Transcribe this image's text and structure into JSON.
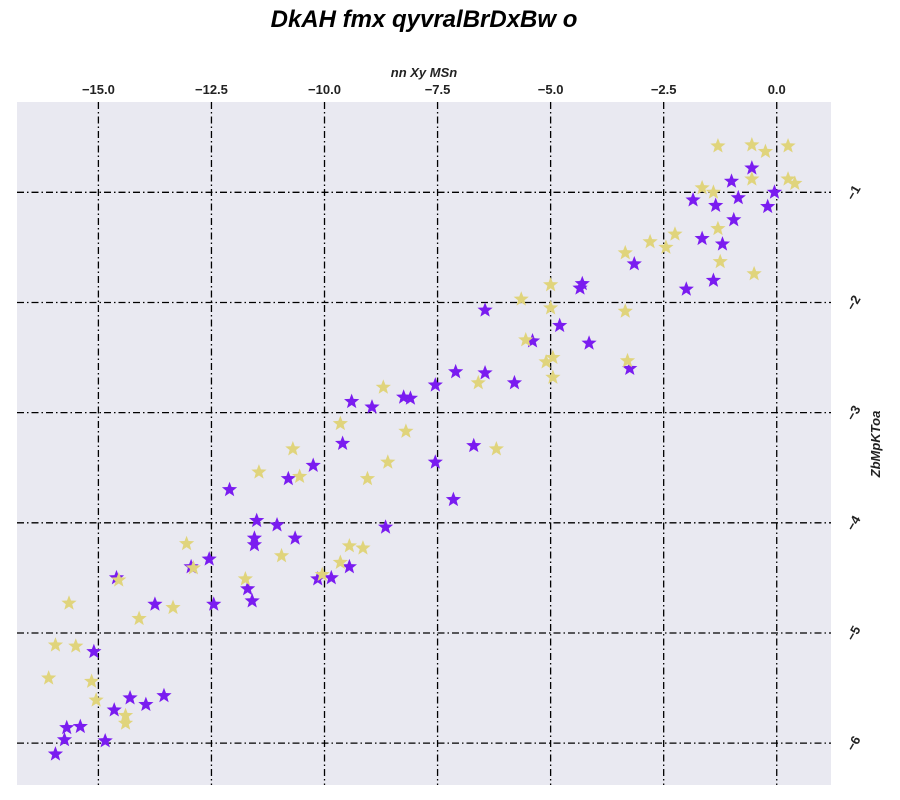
{
  "chart_data": {
    "type": "scatter",
    "title": "DkAH fmx qyvralBrDxBw o",
    "xlabel": "nn Xy MSn",
    "ylabel": "ZbMpKToa",
    "x_axis_position": "top",
    "y_axis_position": "right",
    "xlim": [
      -16.8,
      1.2
    ],
    "ylim": [
      -6.38,
      -0.18
    ],
    "x_ticks": [
      -15.0,
      -12.5,
      -10.0,
      -7.5,
      -5.0,
      -2.5,
      0.0
    ],
    "x_tick_labels": [
      "−15.0",
      "−12.5",
      "−10.0",
      "−7.5",
      "−5.0",
      "−2.5",
      "0.0"
    ],
    "y_ticks": [
      -1,
      -2,
      -3,
      -4,
      -5,
      -6
    ],
    "y_tick_labels": [
      "−1",
      "−2",
      "−3",
      "−4",
      "−5",
      "−6"
    ],
    "grid": true,
    "marker": "star",
    "colors": {
      "plot_background": "#e9e9f1"
    },
    "series": [
      {
        "color": "#7a1cf0",
        "points": [
          [
            -0.55,
            -0.78
          ],
          [
            -1.0,
            -0.9
          ],
          [
            -0.05,
            -1.0
          ],
          [
            -0.85,
            -1.05
          ],
          [
            -1.85,
            -1.07
          ],
          [
            -1.35,
            -1.12
          ],
          [
            -0.2,
            -1.13
          ],
          [
            -0.95,
            -1.25
          ],
          [
            -1.65,
            -1.42
          ],
          [
            -1.2,
            -1.47
          ],
          [
            -3.15,
            -1.65
          ],
          [
            -1.4,
            -1.8
          ],
          [
            -2.0,
            -1.88
          ],
          [
            -4.3,
            -1.83
          ],
          [
            -4.35,
            -1.87
          ],
          [
            -6.45,
            -2.07
          ],
          [
            -4.8,
            -2.21
          ],
          [
            -5.4,
            -2.35
          ],
          [
            -4.15,
            -2.37
          ],
          [
            -3.25,
            -2.6
          ],
          [
            -7.1,
            -2.63
          ],
          [
            -6.45,
            -2.64
          ],
          [
            -7.55,
            -2.75
          ],
          [
            -5.8,
            -2.73
          ],
          [
            -8.25,
            -2.86
          ],
          [
            -8.1,
            -2.87
          ],
          [
            -9.4,
            -2.9
          ],
          [
            -8.95,
            -2.95
          ],
          [
            -9.6,
            -3.28
          ],
          [
            -6.7,
            -3.3
          ],
          [
            -7.55,
            -3.45
          ],
          [
            -10.25,
            -3.48
          ],
          [
            -10.8,
            -3.6
          ],
          [
            -12.1,
            -3.7
          ],
          [
            -7.15,
            -3.79
          ],
          [
            -11.5,
            -3.98
          ],
          [
            -11.05,
            -4.02
          ],
          [
            -8.65,
            -4.04
          ],
          [
            -10.65,
            -4.14
          ],
          [
            -11.55,
            -4.14
          ],
          [
            -11.55,
            -4.2
          ],
          [
            -12.55,
            -4.33
          ],
          [
            -12.95,
            -4.4
          ],
          [
            -10.15,
            -4.51
          ],
          [
            -9.85,
            -4.5
          ],
          [
            -9.45,
            -4.4
          ],
          [
            -11.7,
            -4.6
          ],
          [
            -11.6,
            -4.71
          ],
          [
            -12.45,
            -4.74
          ],
          [
            -13.75,
            -4.74
          ],
          [
            -14.6,
            -4.5
          ],
          [
            -15.1,
            -5.17
          ],
          [
            -13.55,
            -5.57
          ],
          [
            -14.3,
            -5.59
          ],
          [
            -13.95,
            -5.65
          ],
          [
            -14.65,
            -5.7
          ],
          [
            -15.4,
            -5.85
          ],
          [
            -15.7,
            -5.86
          ],
          [
            -15.75,
            -5.97
          ],
          [
            -14.85,
            -5.98
          ],
          [
            -15.95,
            -6.1
          ]
        ]
      },
      {
        "color": "#e0d47c",
        "points": [
          [
            -1.3,
            -0.58
          ],
          [
            -0.55,
            -0.57
          ],
          [
            -0.25,
            -0.63
          ],
          [
            0.25,
            -0.58
          ],
          [
            0.25,
            -0.88
          ],
          [
            0.4,
            -0.92
          ],
          [
            -0.55,
            -0.88
          ],
          [
            -1.65,
            -0.96
          ],
          [
            -1.4,
            -1.0
          ],
          [
            -1.3,
            -1.33
          ],
          [
            -2.25,
            -1.38
          ],
          [
            -2.8,
            -1.45
          ],
          [
            -2.45,
            -1.5
          ],
          [
            -3.35,
            -1.55
          ],
          [
            -1.25,
            -1.63
          ],
          [
            -0.5,
            -1.74
          ],
          [
            -5.0,
            -1.84
          ],
          [
            -5.65,
            -1.97
          ],
          [
            -5.0,
            -2.05
          ],
          [
            -3.35,
            -2.08
          ],
          [
            -5.55,
            -2.34
          ],
          [
            -4.95,
            -2.5
          ],
          [
            -5.1,
            -2.54
          ],
          [
            -3.3,
            -2.53
          ],
          [
            -4.95,
            -2.68
          ],
          [
            -6.6,
            -2.73
          ],
          [
            -8.7,
            -2.77
          ],
          [
            -9.65,
            -3.1
          ],
          [
            -8.2,
            -3.17
          ],
          [
            -10.7,
            -3.33
          ],
          [
            -6.2,
            -3.33
          ],
          [
            -8.6,
            -3.45
          ],
          [
            -10.55,
            -3.58
          ],
          [
            -11.45,
            -3.54
          ],
          [
            -9.05,
            -3.6
          ],
          [
            -13.05,
            -4.19
          ],
          [
            -9.45,
            -4.21
          ],
          [
            -9.15,
            -4.23
          ],
          [
            -10.95,
            -4.3
          ],
          [
            -9.65,
            -4.36
          ],
          [
            -12.9,
            -4.41
          ],
          [
            -10.05,
            -4.47
          ],
          [
            -11.75,
            -4.51
          ],
          [
            -14.55,
            -4.52
          ],
          [
            -15.65,
            -4.73
          ],
          [
            -13.35,
            -4.77
          ],
          [
            -14.1,
            -4.87
          ],
          [
            -15.95,
            -5.11
          ],
          [
            -15.5,
            -5.12
          ],
          [
            -16.1,
            -5.41
          ],
          [
            -15.15,
            -5.44
          ],
          [
            -15.05,
            -5.61
          ],
          [
            -14.4,
            -5.75
          ],
          [
            -14.4,
            -5.82
          ]
        ]
      }
    ]
  }
}
